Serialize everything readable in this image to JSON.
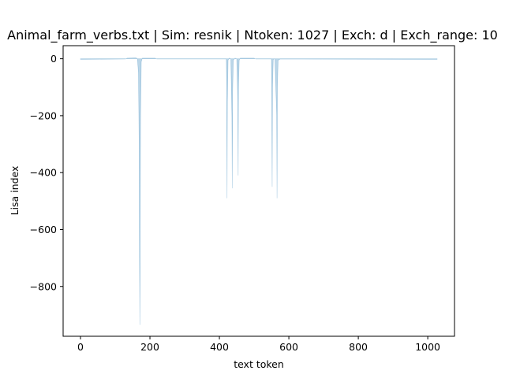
{
  "chart_data": {
    "type": "area",
    "title": "Animal_farm_verbs.txt | Sim: resnik | Ntoken: 1027 | Exch: d | Exch_range: 10",
    "xlabel": "text token",
    "ylabel": "Lisa index",
    "xlim": [
      -50,
      1077
    ],
    "ylim": [
      -975,
      46
    ],
    "x_ticks": [
      0,
      200,
      400,
      600,
      800,
      1000
    ],
    "y_ticks": [
      0,
      -200,
      -400,
      -600,
      -800
    ],
    "x_tick_labels": [
      "0",
      "200",
      "400",
      "600",
      "800",
      "1000"
    ],
    "y_tick_labels": [
      "0",
      "−200",
      "−400",
      "−600",
      "−800"
    ],
    "grid": false,
    "series_color": "#1f77b4",
    "fill_alpha": 0.3,
    "series": [
      {
        "points": [
          [
            0,
            -2
          ],
          [
            130,
            -1
          ],
          [
            134,
            2
          ],
          [
            160,
            3
          ],
          [
            164,
            0
          ],
          [
            167,
            -50
          ],
          [
            169,
            -300
          ],
          [
            170,
            -700
          ],
          [
            171,
            -935
          ],
          [
            172,
            -600
          ],
          [
            173,
            -200
          ],
          [
            175,
            -10
          ],
          [
            178,
            2
          ],
          [
            215,
            2
          ],
          [
            220,
            -1
          ],
          [
            420,
            -1
          ],
          [
            421,
            -100
          ],
          [
            422,
            -490
          ],
          [
            423,
            -150
          ],
          [
            425,
            -5
          ],
          [
            428,
            2
          ],
          [
            433,
            0
          ],
          [
            436,
            -200
          ],
          [
            437,
            -455
          ],
          [
            438,
            -120
          ],
          [
            440,
            -5
          ],
          [
            445,
            2
          ],
          [
            450,
            0
          ],
          [
            453,
            -150
          ],
          [
            454,
            -410
          ],
          [
            455,
            -100
          ],
          [
            457,
            -5
          ],
          [
            460,
            2
          ],
          [
            500,
            2
          ],
          [
            505,
            -1
          ],
          [
            550,
            -1
          ],
          [
            551,
            -200
          ],
          [
            552,
            -450
          ],
          [
            553,
            -100
          ],
          [
            555,
            -2
          ],
          [
            560,
            0
          ],
          [
            565,
            -200
          ],
          [
            566,
            -490
          ],
          [
            567,
            -100
          ],
          [
            569,
            -5
          ],
          [
            575,
            -1
          ],
          [
            1027,
            -2
          ]
        ]
      }
    ]
  }
}
